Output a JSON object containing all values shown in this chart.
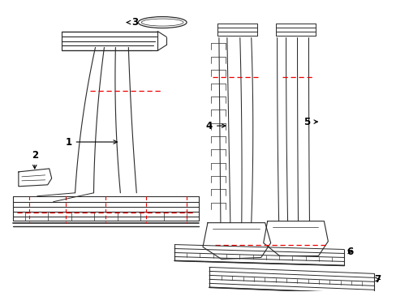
{
  "bg_color": "#ffffff",
  "line_color": "#2a2a2a",
  "red_dash_color": "#ee0000",
  "label_color": "#000000",
  "fig_w": 4.89,
  "fig_h": 3.6,
  "dpi": 100
}
